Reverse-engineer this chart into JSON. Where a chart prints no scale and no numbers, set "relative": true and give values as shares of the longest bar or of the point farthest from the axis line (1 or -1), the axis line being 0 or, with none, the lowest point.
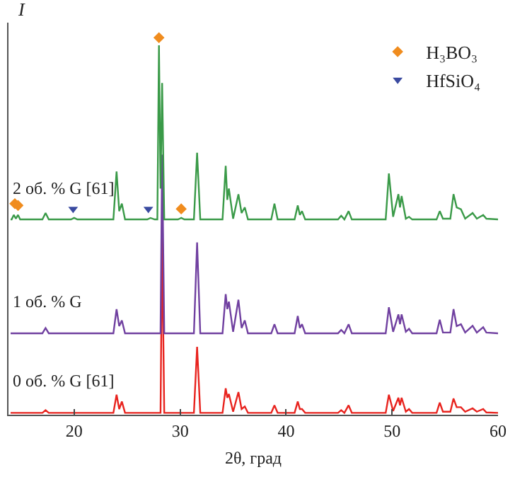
{
  "chart_data": {
    "type": "line",
    "relative": true,
    "xlabel": "2θ, град",
    "ylabel": "I",
    "xlim": [
      13.8,
      60
    ],
    "xticks": [
      20,
      30,
      40,
      50,
      60
    ],
    "tick_labels": "x",
    "grid": false,
    "legend": "top right",
    "line_style": "solid",
    "x": [
      14.0,
      14.1,
      14.3,
      14.5,
      14.7,
      14.9,
      17.0,
      17.3,
      17.6,
      19.7,
      20.0,
      20.3,
      23.7,
      24.0,
      24.25,
      24.5,
      24.8,
      26.9,
      27.2,
      27.6,
      27.85,
      28.0,
      28.15,
      28.3,
      28.5,
      29.8,
      30.1,
      30.4,
      31.3,
      31.6,
      31.9,
      34.0,
      34.3,
      34.45,
      34.6,
      35.0,
      35.5,
      35.8,
      36.1,
      36.4,
      38.6,
      38.9,
      39.2,
      40.8,
      41.1,
      41.3,
      41.5,
      41.8,
      44.9,
      45.2,
      45.5,
      45.9,
      46.2,
      49.4,
      49.7,
      50.1,
      50.6,
      50.75,
      50.9,
      51.3,
      51.6,
      51.9,
      54.2,
      54.5,
      54.8,
      55.5,
      55.8,
      56.1,
      56.5,
      56.9,
      57.6,
      58.0,
      58.6,
      58.9,
      60
    ],
    "series": [
      {
        "name": "0 об. % G [61]",
        "color": "#e8231e",
        "values": [
          0.005,
          0.005,
          0.005,
          0.005,
          0.005,
          0.005,
          0.005,
          0.012,
          0.005,
          0.005,
          0.005,
          0.005,
          0.005,
          0.053,
          0.015,
          0.035,
          0.005,
          0.005,
          0.005,
          0.005,
          0.005,
          0.005,
          0.005,
          0.47,
          0.005,
          0.005,
          0.005,
          0.005,
          0.005,
          0.18,
          0.005,
          0.005,
          0.07,
          0.045,
          0.055,
          0.008,
          0.06,
          0.015,
          0.022,
          0.005,
          0.005,
          0.025,
          0.005,
          0.005,
          0.035,
          0.015,
          0.015,
          0.005,
          0.005,
          0.012,
          0.005,
          0.025,
          0.005,
          0.005,
          0.053,
          0.01,
          0.045,
          0.025,
          0.045,
          0.008,
          0.015,
          0.005,
          0.005,
          0.032,
          0.008,
          0.008,
          0.043,
          0.02,
          0.02,
          0.008,
          0.017,
          0.008,
          0.015,
          0.006,
          0.005
        ]
      },
      {
        "name": "1 об. % G",
        "color": "#7040a0",
        "values": [
          0.216,
          0.216,
          0.216,
          0.216,
          0.216,
          0.216,
          0.216,
          0.23,
          0.216,
          0.216,
          0.216,
          0.216,
          0.216,
          0.28,
          0.235,
          0.25,
          0.216,
          0.216,
          0.216,
          0.216,
          0.216,
          0.216,
          0.216,
          0.69,
          0.216,
          0.216,
          0.216,
          0.216,
          0.216,
          0.457,
          0.216,
          0.216,
          0.32,
          0.28,
          0.3,
          0.22,
          0.305,
          0.23,
          0.25,
          0.216,
          0.216,
          0.24,
          0.216,
          0.216,
          0.262,
          0.23,
          0.24,
          0.216,
          0.216,
          0.225,
          0.216,
          0.24,
          0.216,
          0.216,
          0.285,
          0.22,
          0.266,
          0.24,
          0.266,
          0.22,
          0.228,
          0.216,
          0.216,
          0.252,
          0.218,
          0.218,
          0.28,
          0.235,
          0.24,
          0.218,
          0.236,
          0.218,
          0.232,
          0.218,
          0.216
        ]
      },
      {
        "name": "2 об. % G [61]",
        "color": "#3a9a48",
        "values": [
          0.518,
          0.518,
          0.53,
          0.52,
          0.53,
          0.518,
          0.518,
          0.535,
          0.518,
          0.518,
          0.522,
          0.518,
          0.518,
          0.645,
          0.54,
          0.56,
          0.518,
          0.518,
          0.522,
          0.518,
          0.518,
          0.98,
          0.6,
          0.88,
          0.518,
          0.518,
          0.522,
          0.518,
          0.518,
          0.695,
          0.518,
          0.518,
          0.66,
          0.57,
          0.6,
          0.52,
          0.585,
          0.535,
          0.55,
          0.518,
          0.518,
          0.56,
          0.518,
          0.518,
          0.555,
          0.53,
          0.54,
          0.518,
          0.518,
          0.528,
          0.518,
          0.54,
          0.518,
          0.518,
          0.64,
          0.525,
          0.585,
          0.55,
          0.58,
          0.52,
          0.525,
          0.518,
          0.518,
          0.54,
          0.52,
          0.52,
          0.585,
          0.55,
          0.545,
          0.52,
          0.535,
          0.52,
          0.53,
          0.52,
          0.518
        ]
      },
      {
        "name": "H₃BO₃",
        "type": "scatter",
        "marker": "diamond",
        "color": "#f08c1e",
        "x": [
          14.4,
          14.7,
          28.0,
          30.1
        ],
        "values": [
          0.56,
          0.555,
          1.0,
          0.546
        ]
      },
      {
        "name": "HfSiO₄",
        "type": "scatter",
        "marker": "triangle",
        "color": "#3a4aa0",
        "x": [
          19.9,
          27.0
        ],
        "values": [
          0.546,
          0.546
        ]
      }
    ]
  }
}
